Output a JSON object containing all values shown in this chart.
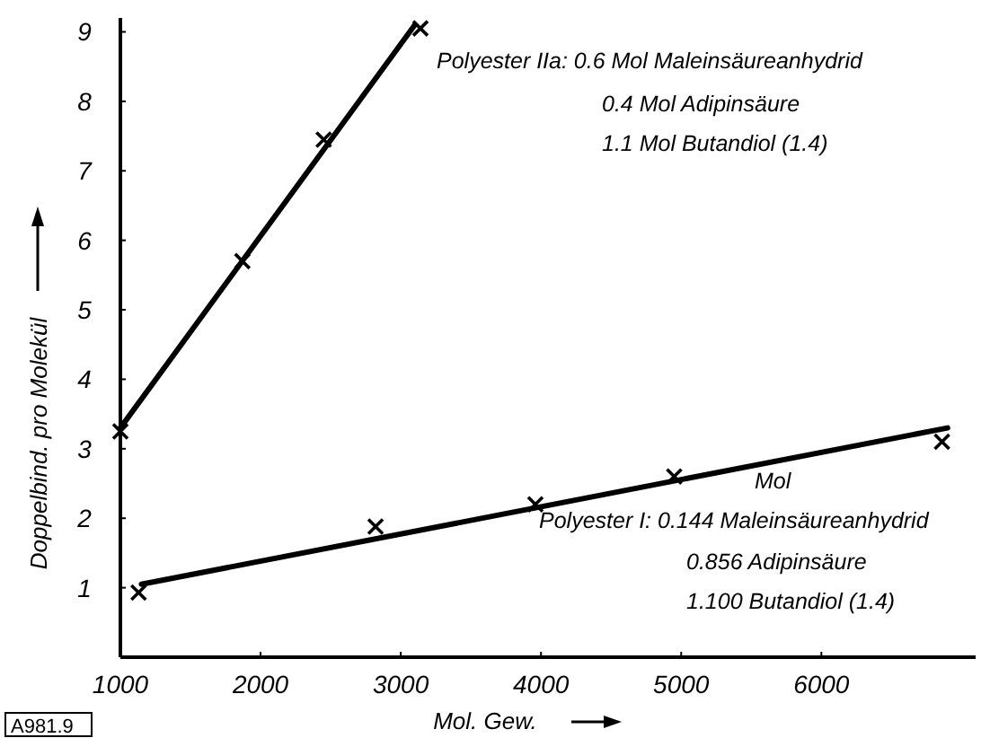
{
  "chart_data": {
    "type": "scatter",
    "xlabel": "Mol. Gew.",
    "ylabel": "Doppelbind. pro Molekül",
    "xlim": [
      1000,
      7100
    ],
    "ylim": [
      0,
      9.2
    ],
    "xticks": [
      1000,
      2000,
      3000,
      4000,
      5000,
      6000
    ],
    "yticks": [
      1,
      2,
      3,
      4,
      5,
      6,
      7,
      8,
      9
    ],
    "grid": false,
    "marker": "cross",
    "series": [
      {
        "type": "line",
        "marker": "none",
        "color": "#000000",
        "x": [
          1000,
          3100
        ],
        "values": [
          3.3,
          9.1
        ]
      },
      {
        "color": "#000000",
        "x": [
          1000,
          1870,
          2450,
          3140
        ],
        "values": [
          3.25,
          5.7,
          7.45,
          9.05
        ]
      },
      {
        "type": "line",
        "marker": "none",
        "color": "#000000",
        "x": [
          1150,
          6900
        ],
        "values": [
          1.05,
          3.3
        ]
      },
      {
        "color": "#000000",
        "x": [
          1130,
          2820,
          3960,
          4950,
          6860
        ],
        "values": [
          0.93,
          1.88,
          2.2,
          2.6,
          3.1
        ]
      }
    ],
    "annotations": [
      "Polyester IIa: 0.6 Mol Maleinsäureanhydrid",
      "0.4 Mol Adipinsäure",
      "1.1 Mol Butandiol (1.4)",
      "Mol",
      "Polyester I: 0.144 Maleinsäureanhydrid",
      "0.856 Adipinsäure",
      "1.100 Butandiol (1.4)",
      "A981.9"
    ]
  }
}
